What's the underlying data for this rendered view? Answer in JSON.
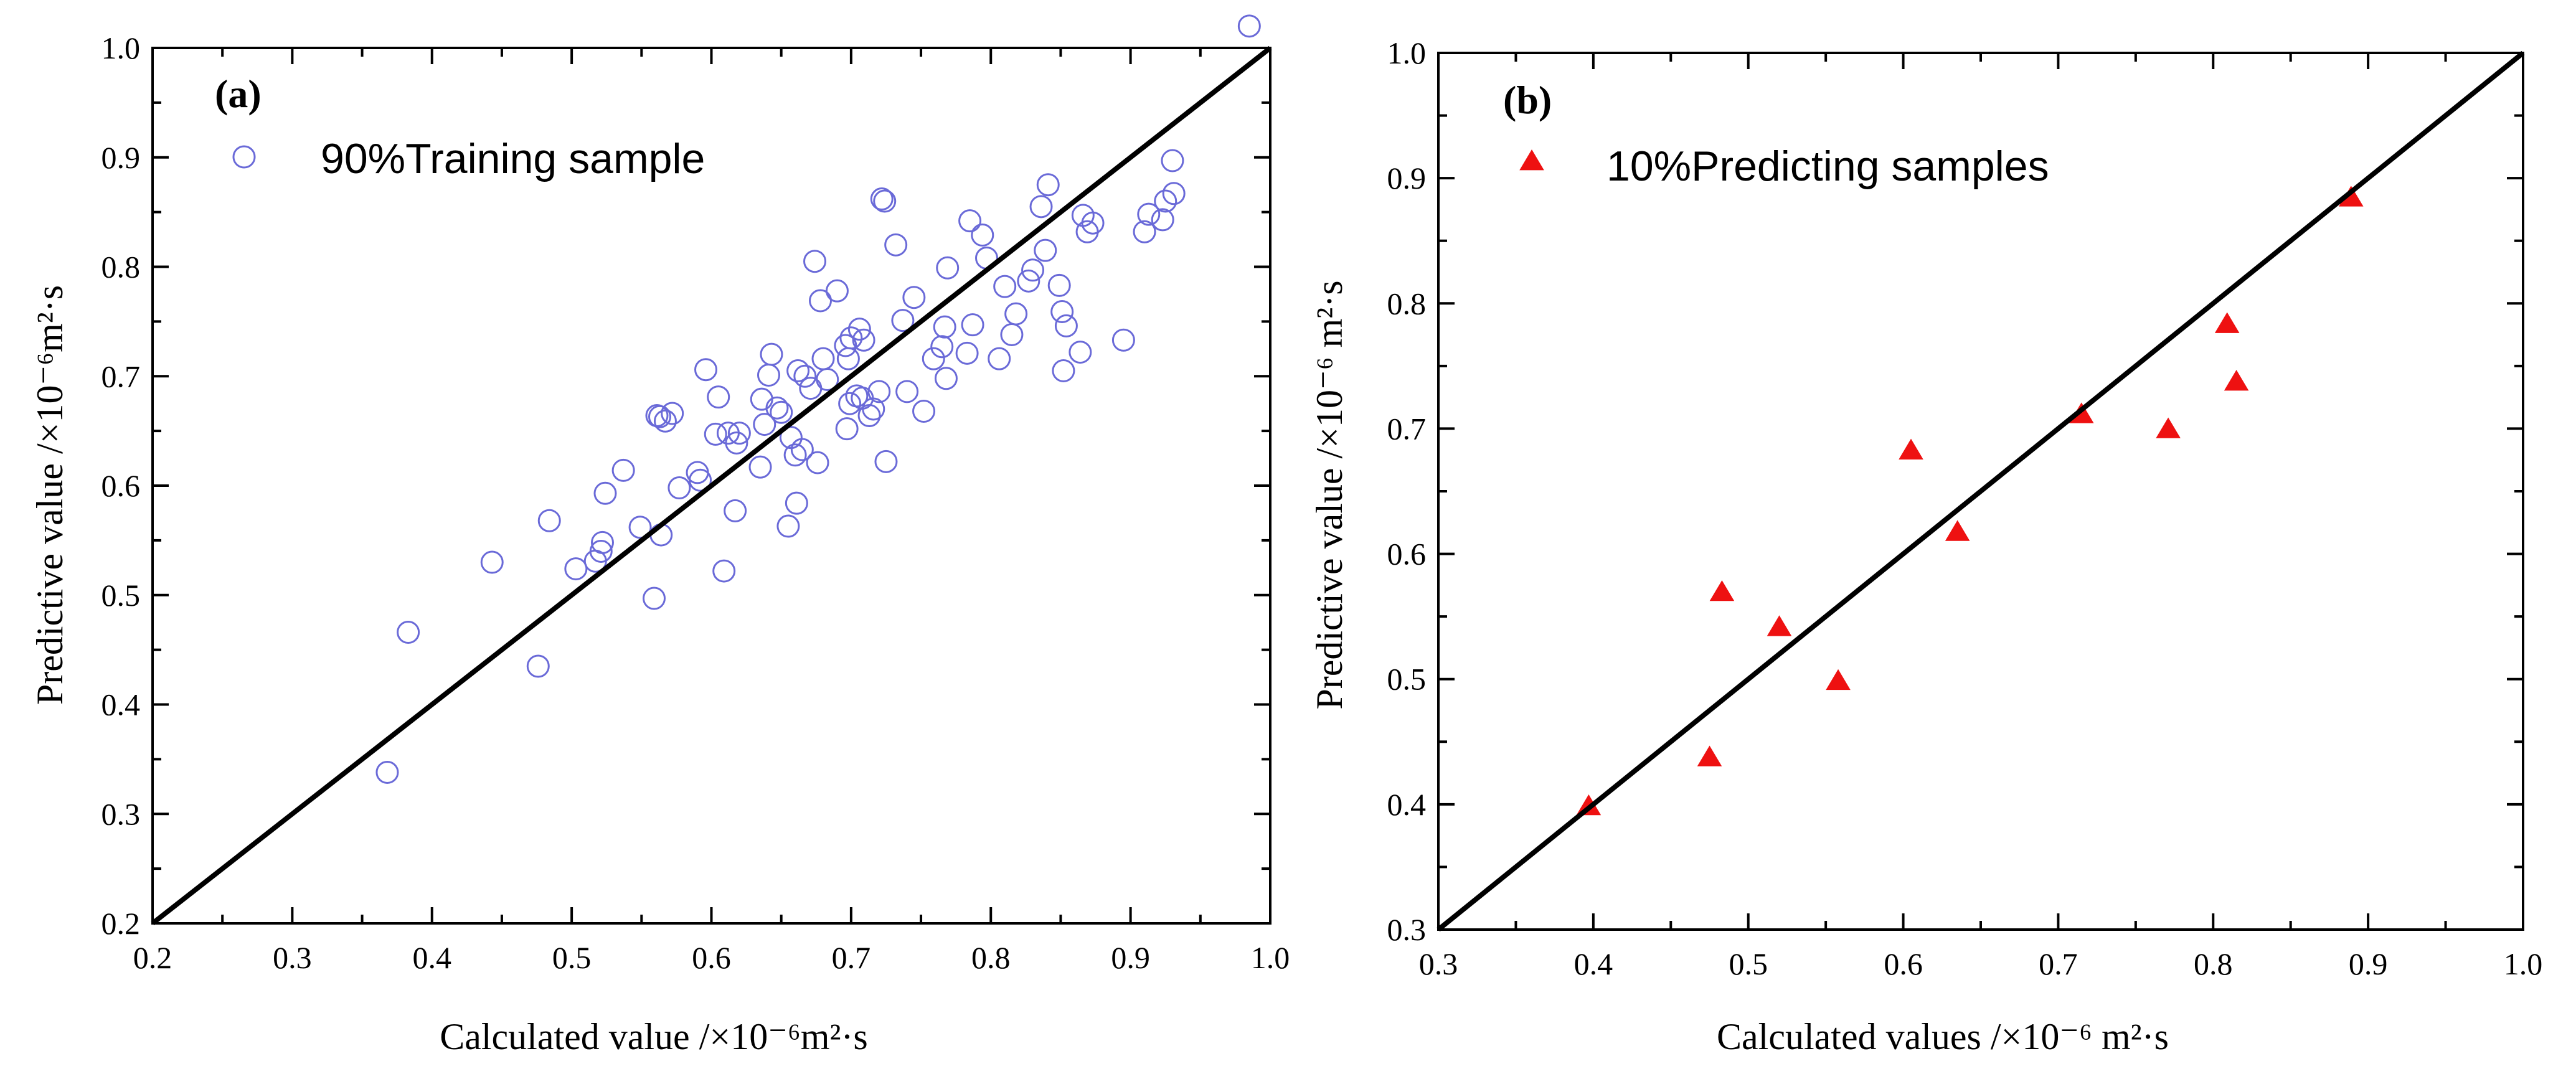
{
  "chart_data": [
    {
      "type": "scatter",
      "panel_label": "(a)",
      "xlabel": "Calculated value /×10⁻⁶m²·s",
      "ylabel": "Predictive value  /×10⁻⁶m²·s",
      "xlim": [
        0.2,
        1.0
      ],
      "ylim": [
        0.2,
        1.0
      ],
      "x_ticks": [
        "0.2",
        "0.3",
        "0.4",
        "0.5",
        "0.6",
        "0.7",
        "0.8",
        "0.9",
        "1.0"
      ],
      "y_ticks": [
        "0.2",
        "0.3",
        "0.4",
        "0.5",
        "0.6",
        "0.7",
        "0.8",
        "0.9",
        "1.0"
      ],
      "diagonal_line": "y = x",
      "legend_placement": "top-left",
      "color": "#6a6ad8",
      "series": [
        {
          "name": "90%Training sample",
          "marker": "open-circle",
          "points": [
            [
              0.368,
              0.338
            ],
            [
              0.383,
              0.466
            ],
            [
              0.443,
              0.53
            ],
            [
              0.476,
              0.435
            ],
            [
              0.484,
              0.568
            ],
            [
              0.503,
              0.524
            ],
            [
              0.517,
              0.531
            ],
            [
              0.521,
              0.54
            ],
            [
              0.522,
              0.548
            ],
            [
              0.524,
              0.593
            ],
            [
              0.537,
              0.614
            ],
            [
              0.549,
              0.562
            ],
            [
              0.559,
              0.497
            ],
            [
              0.561,
              0.664
            ],
            [
              0.563,
              0.663
            ],
            [
              0.564,
              0.555
            ],
            [
              0.567,
              0.659
            ],
            [
              0.572,
              0.666
            ],
            [
              0.577,
              0.598
            ],
            [
              0.59,
              0.612
            ],
            [
              0.592,
              0.605
            ],
            [
              0.596,
              0.706
            ],
            [
              0.603,
              0.647
            ],
            [
              0.605,
              0.681
            ],
            [
              0.609,
              0.522
            ],
            [
              0.612,
              0.648
            ],
            [
              0.617,
              0.577
            ],
            [
              0.618,
              0.639
            ],
            [
              0.62,
              0.648
            ],
            [
              0.635,
              0.617
            ],
            [
              0.636,
              0.679
            ],
            [
              0.638,
              0.656
            ],
            [
              0.641,
              0.701
            ],
            [
              0.643,
              0.72
            ],
            [
              0.647,
              0.671
            ],
            [
              0.65,
              0.667
            ],
            [
              0.655,
              0.563
            ],
            [
              0.657,
              0.644
            ],
            [
              0.66,
              0.628
            ],
            [
              0.661,
              0.584
            ],
            [
              0.662,
              0.705
            ],
            [
              0.665,
              0.633
            ],
            [
              0.667,
              0.7
            ],
            [
              0.671,
              0.689
            ],
            [
              0.674,
              0.805
            ],
            [
              0.676,
              0.621
            ],
            [
              0.678,
              0.769
            ],
            [
              0.68,
              0.716
            ],
            [
              0.683,
              0.697
            ],
            [
              0.69,
              0.778
            ],
            [
              0.696,
              0.728
            ],
            [
              0.697,
              0.652
            ],
            [
              0.698,
              0.716
            ],
            [
              0.699,
              0.675
            ],
            [
              0.7,
              0.735
            ],
            [
              0.704,
              0.682
            ],
            [
              0.706,
              0.743
            ],
            [
              0.708,
              0.68
            ],
            [
              0.709,
              0.733
            ],
            [
              0.713,
              0.664
            ],
            [
              0.716,
              0.67
            ],
            [
              0.72,
              0.686
            ],
            [
              0.722,
              0.862
            ],
            [
              0.724,
              0.86
            ],
            [
              0.725,
              0.622
            ],
            [
              0.732,
              0.82
            ],
            [
              0.737,
              0.751
            ],
            [
              0.74,
              0.686
            ],
            [
              0.745,
              0.772
            ],
            [
              0.752,
              0.668
            ],
            [
              0.759,
              0.716
            ],
            [
              0.765,
              0.727
            ],
            [
              0.767,
              0.745
            ],
            [
              0.768,
              0.698
            ],
            [
              0.769,
              0.799
            ],
            [
              0.783,
              0.721
            ],
            [
              0.785,
              0.842
            ],
            [
              0.787,
              0.747
            ],
            [
              0.794,
              0.829
            ],
            [
              0.797,
              0.808
            ],
            [
              0.806,
              0.716
            ],
            [
              0.81,
              0.782
            ],
            [
              0.815,
              0.738
            ],
            [
              0.818,
              0.757
            ],
            [
              0.827,
              0.787
            ],
            [
              0.83,
              0.797
            ],
            [
              0.836,
              0.855
            ],
            [
              0.839,
              0.815
            ],
            [
              0.841,
              0.875
            ],
            [
              0.849,
              0.783
            ],
            [
              0.851,
              0.759
            ],
            [
              0.852,
              0.705
            ],
            [
              0.854,
              0.746
            ],
            [
              0.864,
              0.722
            ],
            [
              0.866,
              0.847
            ],
            [
              0.869,
              0.832
            ],
            [
              0.873,
              0.84
            ],
            [
              0.895,
              0.733
            ],
            [
              0.91,
              0.832
            ],
            [
              0.913,
              0.848
            ],
            [
              0.923,
              0.843
            ],
            [
              0.925,
              0.86
            ],
            [
              0.93,
              0.897
            ],
            [
              0.931,
              0.867
            ],
            [
              0.985,
              1.02
            ]
          ]
        }
      ]
    },
    {
      "type": "scatter",
      "panel_label": "(b)",
      "xlabel": "Calculated values /×10⁻⁶ m²·s",
      "ylabel": "Predictive value  /×10⁻⁶ m²·s",
      "xlim": [
        0.3,
        1.0
      ],
      "ylim": [
        0.3,
        1.0
      ],
      "x_ticks": [
        "0.3",
        "0.4",
        "0.5",
        "0.6",
        "0.7",
        "0.8",
        "0.9",
        "1.0"
      ],
      "y_ticks": [
        "0.3",
        "0.4",
        "0.5",
        "0.6",
        "0.7",
        "0.8",
        "0.9",
        "1.0"
      ],
      "diagonal_line": "y = x",
      "legend_placement": "top-left",
      "color": "#ee1111",
      "series": [
        {
          "name": "10%Predicting samples",
          "marker": "filled-triangle",
          "points": [
            [
              0.397,
              0.398
            ],
            [
              0.475,
              0.437
            ],
            [
              0.483,
              0.569
            ],
            [
              0.52,
              0.541
            ],
            [
              0.558,
              0.498
            ],
            [
              0.605,
              0.682
            ],
            [
              0.635,
              0.617
            ],
            [
              0.715,
              0.711
            ],
            [
              0.771,
              0.699
            ],
            [
              0.809,
              0.783
            ],
            [
              0.815,
              0.737
            ],
            [
              0.889,
              0.884
            ]
          ]
        }
      ]
    }
  ]
}
